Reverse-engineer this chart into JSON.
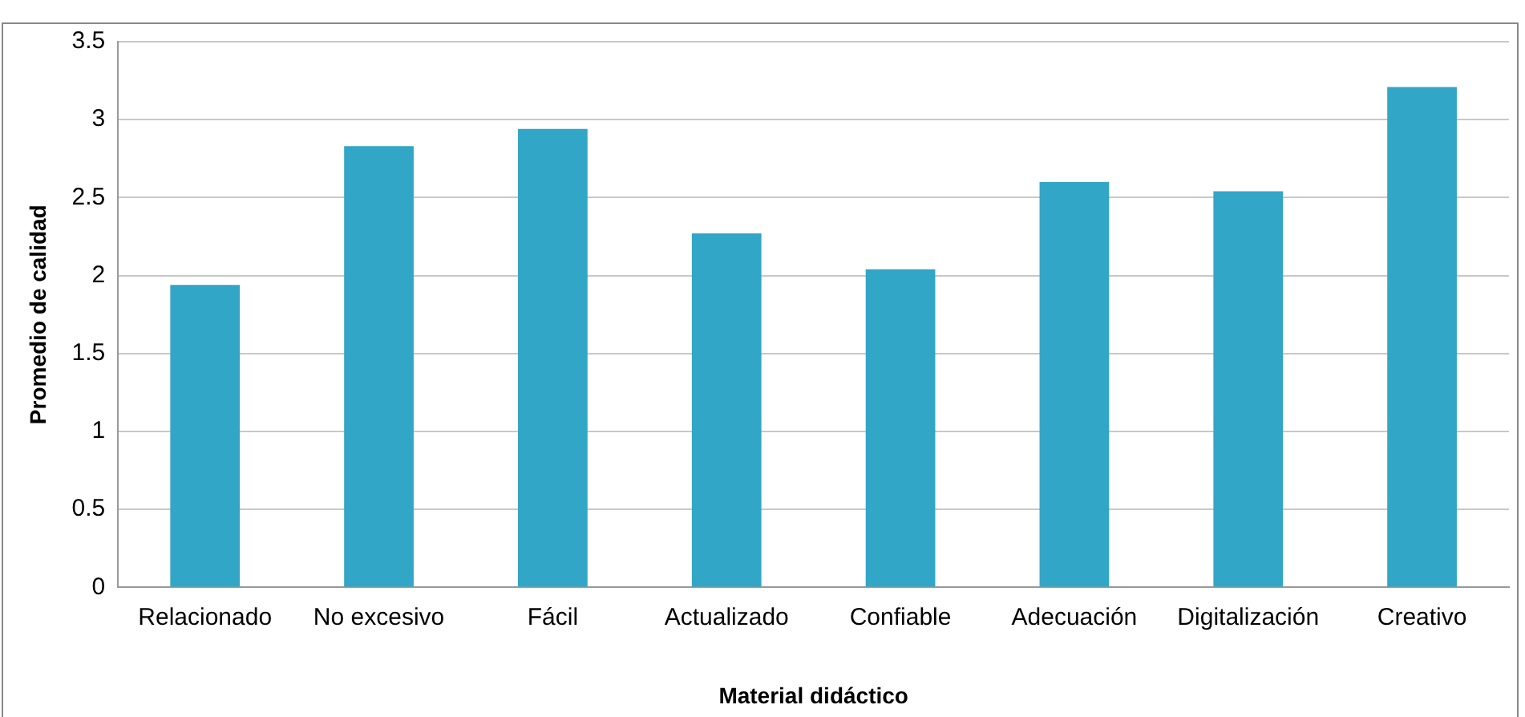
{
  "chart_data": {
    "type": "bar",
    "xlabel": "Material didáctico",
    "ylabel": "Promedio de calidad",
    "categories": [
      "Relacionado",
      "No excesivo",
      "Fácil",
      "Actualizado",
      "Confiable",
      "Adecuación",
      "Digitalización",
      "Creativo"
    ],
    "values": [
      1.94,
      2.83,
      2.94,
      2.27,
      2.04,
      2.6,
      2.54,
      3.21
    ],
    "color": "#31a6c6",
    "ylim": [
      0,
      3.5
    ],
    "yticks": [
      0,
      0.5,
      1,
      1.5,
      2,
      2.5,
      3,
      3.5
    ],
    "grid": "y",
    "legend": false
  }
}
